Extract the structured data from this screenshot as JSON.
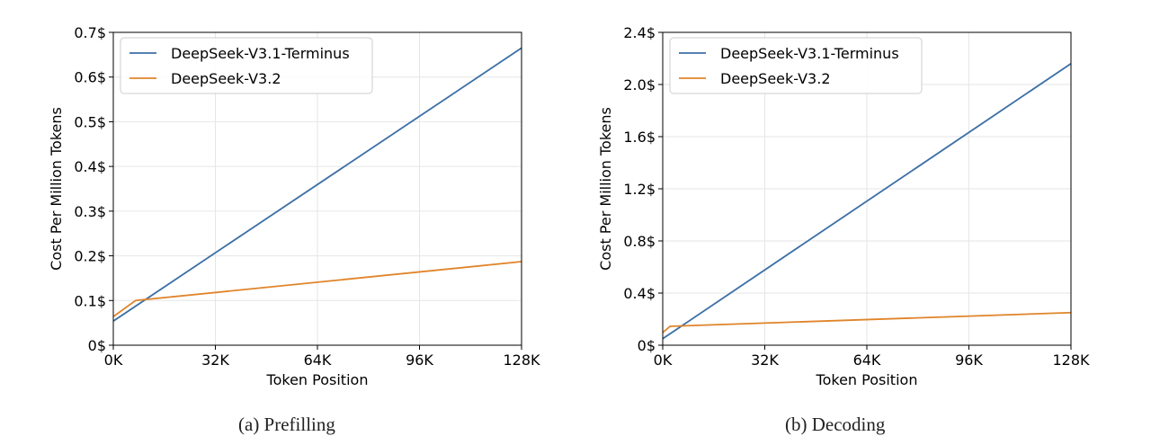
{
  "colors": {
    "terminus": "#3b6fa5",
    "v32": "#e0842a"
  },
  "chart_data": [
    {
      "type": "line",
      "caption": "(a)  Prefilling",
      "xlabel": "Token Position",
      "ylabel": "Cost Per Million Tokens",
      "xlim": [
        0,
        128
      ],
      "ylim": [
        0,
        0.7
      ],
      "xticks": [
        "0K",
        "32K",
        "64K",
        "96K",
        "128K"
      ],
      "xtick_values": [
        0,
        32,
        64,
        96,
        128
      ],
      "yticks": [
        "0$",
        "0.1$",
        "0.2$",
        "0.3$",
        "0.4$",
        "0.5$",
        "0.6$",
        "0.7$"
      ],
      "ytick_values": [
        0,
        0.1,
        0.2,
        0.3,
        0.4,
        0.5,
        0.6,
        0.7
      ],
      "grid": true,
      "legend": "top-left",
      "series": [
        {
          "name": "DeepSeek-V3.1-Terminus",
          "color": "#3b6fa5",
          "x": [
            0,
            128
          ],
          "y": [
            0.054,
            0.665
          ]
        },
        {
          "name": "DeepSeek-V3.2",
          "color": "#e0842a",
          "x": [
            0,
            7,
            128
          ],
          "y": [
            0.064,
            0.1,
            0.187
          ]
        }
      ]
    },
    {
      "type": "line",
      "caption": "(b)  Decoding",
      "xlabel": "Token Position",
      "ylabel": "Cost Per Million Tokens",
      "xlim": [
        0,
        128
      ],
      "ylim": [
        0,
        2.4
      ],
      "xticks": [
        "0K",
        "32K",
        "64K",
        "96K",
        "128K"
      ],
      "xtick_values": [
        0,
        32,
        64,
        96,
        128
      ],
      "yticks": [
        "0$",
        "0.4$",
        "0.8$",
        "1.2$",
        "1.6$",
        "2.0$",
        "2.4$"
      ],
      "ytick_values": [
        0,
        0.4,
        0.8,
        1.2,
        1.6,
        2.0,
        2.4
      ],
      "grid": true,
      "legend": "top-left",
      "series": [
        {
          "name": "DeepSeek-V3.1-Terminus",
          "color": "#3b6fa5",
          "x": [
            0,
            128
          ],
          "y": [
            0.05,
            2.16
          ]
        },
        {
          "name": "DeepSeek-V3.2",
          "color": "#e0842a",
          "x": [
            0,
            2.3,
            128
          ],
          "y": [
            0.097,
            0.145,
            0.25
          ]
        }
      ]
    }
  ]
}
